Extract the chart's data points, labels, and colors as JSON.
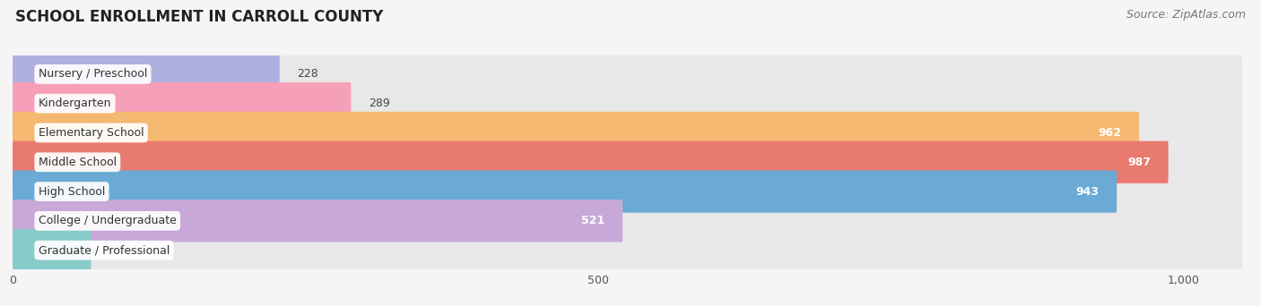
{
  "title": "SCHOOL ENROLLMENT IN CARROLL COUNTY",
  "source": "Source: ZipAtlas.com",
  "categories": [
    "Nursery / Preschool",
    "Kindergarten",
    "Elementary School",
    "Middle School",
    "High School",
    "College / Undergraduate",
    "Graduate / Professional"
  ],
  "values": [
    228,
    289,
    962,
    987,
    943,
    521,
    67
  ],
  "bar_colors": [
    "#b0b0e0",
    "#f5a0b8",
    "#f5b870",
    "#e87a70",
    "#6aaad4",
    "#c8a8d8",
    "#88ccca"
  ],
  "bar_bg_color": "#e8e8e8",
  "xlim_max": 1050,
  "xticks": [
    0,
    500,
    1000
  ],
  "xticklabels": [
    "0",
    "500",
    "1,000"
  ],
  "label_inside_threshold": 400,
  "title_fontsize": 12,
  "source_fontsize": 9,
  "label_fontsize": 9,
  "tick_fontsize": 9,
  "bar_height": 0.72,
  "background_color": "#f5f5f5",
  "grid_color": "#d0d0d0"
}
